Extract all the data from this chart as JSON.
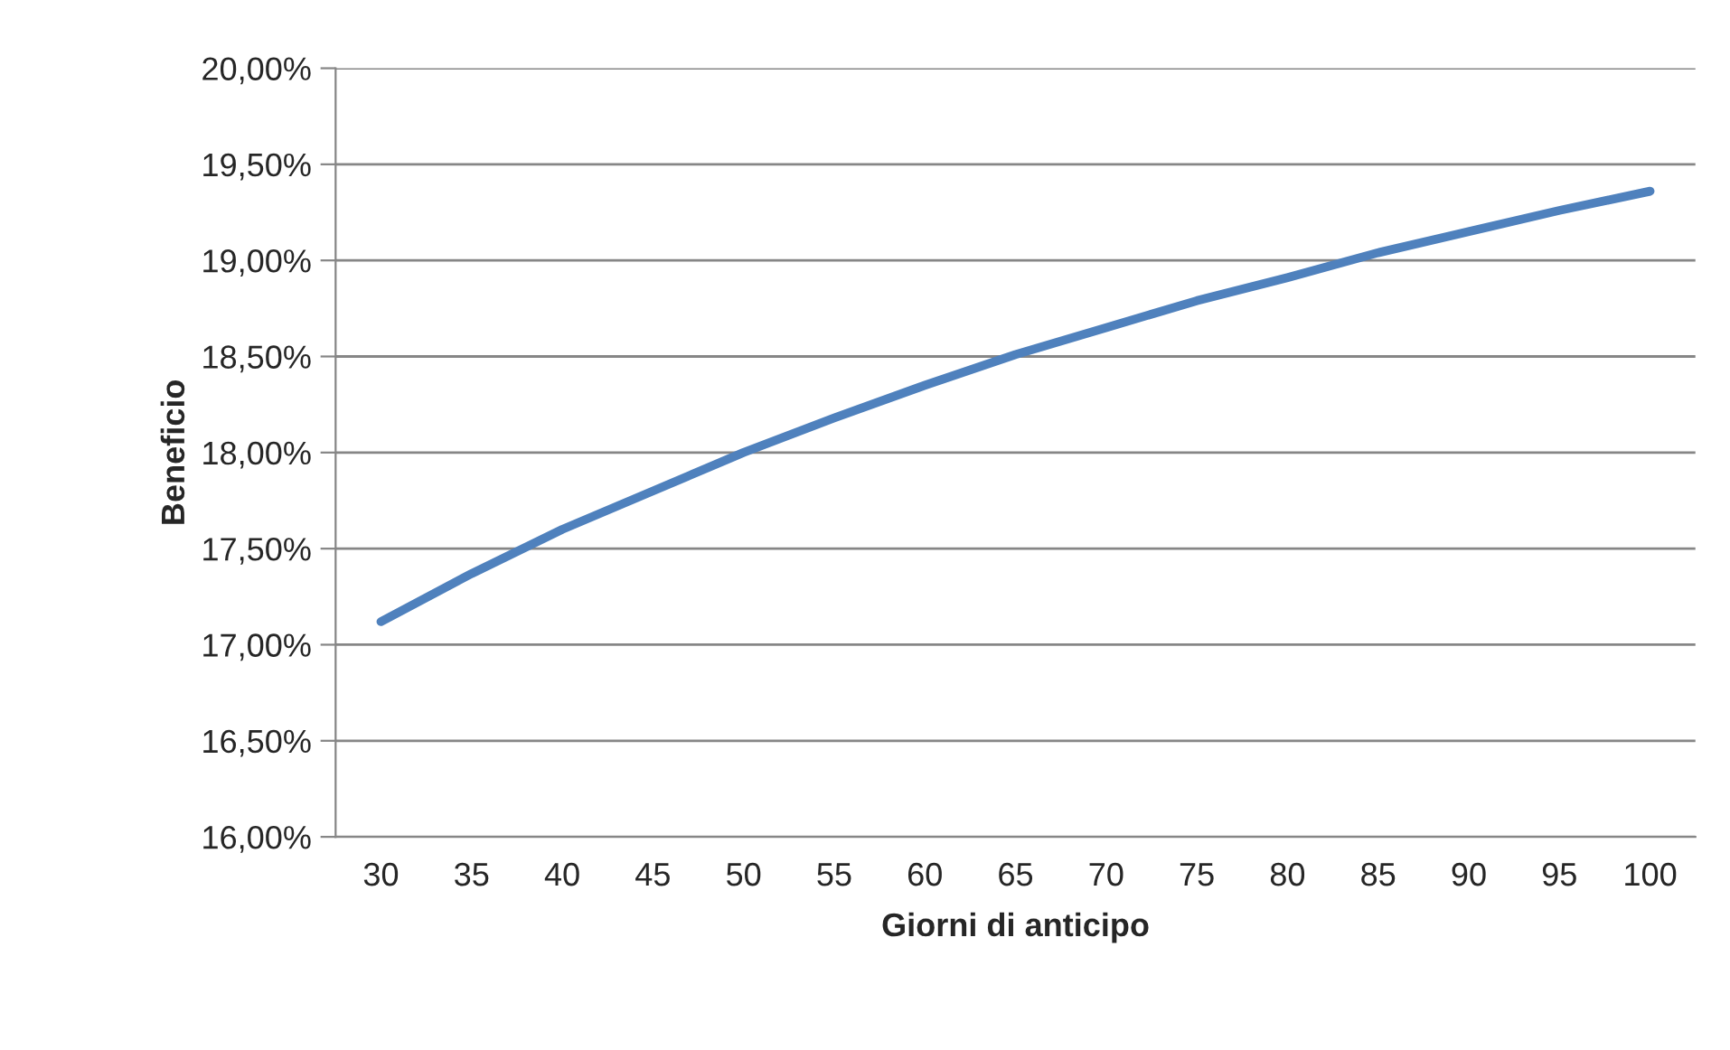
{
  "chart_data": {
    "type": "line",
    "xlabel": "Giorni di anticipo",
    "ylabel": "Beneficio",
    "categories": [
      "30",
      "35",
      "40",
      "45",
      "50",
      "55",
      "60",
      "65",
      "70",
      "75",
      "80",
      "85",
      "90",
      "95",
      "100"
    ],
    "series": [
      {
        "color": "#4f81bd",
        "values": [
          17.12,
          17.37,
          17.6,
          17.8,
          18.0,
          18.18,
          18.35,
          18.51,
          18.65,
          18.79,
          18.91,
          19.04,
          19.15,
          19.26,
          19.36
        ]
      }
    ],
    "ylim": [
      16,
      20
    ],
    "yticks": [
      {
        "value": 16,
        "label": "16,00%"
      },
      {
        "value": 16.5,
        "label": "16,50%"
      },
      {
        "value": 17,
        "label": "17,00%"
      },
      {
        "value": 17.5,
        "label": "17,50%"
      },
      {
        "value": 18,
        "label": "18,00%"
      },
      {
        "value": 18.5,
        "label": "18,50%"
      },
      {
        "value": 19,
        "label": "19,00%"
      },
      {
        "value": 19.5,
        "label": "19,50%"
      },
      {
        "value": 20,
        "label": "20,00%"
      }
    ],
    "grid": "y",
    "marker": "none",
    "line_style": "solid",
    "legend": false
  }
}
